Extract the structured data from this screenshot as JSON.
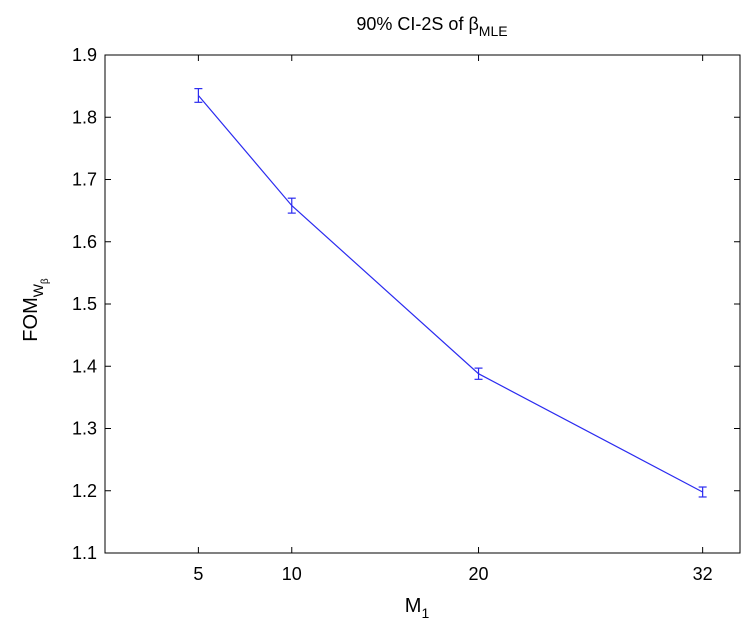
{
  "chart_data": {
    "type": "line",
    "title": {
      "main": "90% CI-2S of β",
      "subscript": "MLE"
    },
    "xlabel": {
      "main": "M",
      "subscript": "1"
    },
    "ylabel": {
      "main": "FOM",
      "subscript": "W",
      "subsubscript": "β"
    },
    "x": [
      5,
      10,
      20,
      32
    ],
    "x_tick_labels": [
      "5",
      "10",
      "20",
      "32"
    ],
    "xlim": [
      0,
      34
    ],
    "ylim": [
      1.1,
      1.9
    ],
    "y_ticks": [
      1.1,
      1.2,
      1.3,
      1.4,
      1.5,
      1.6,
      1.7,
      1.8,
      1.9
    ],
    "y_tick_labels": [
      "1.1",
      "1.2",
      "1.3",
      "1.4",
      "1.5",
      "1.6",
      "1.7",
      "1.8",
      "1.9"
    ],
    "series": [
      {
        "values": [
          1.835,
          1.658,
          1.388,
          1.198
        ],
        "error_lower": [
          1.824,
          1.646,
          1.379,
          1.19
        ],
        "error_upper": [
          1.846,
          1.67,
          1.397,
          1.206
        ],
        "color": "#2b2bf0"
      }
    ],
    "grid": false,
    "box": true
  }
}
